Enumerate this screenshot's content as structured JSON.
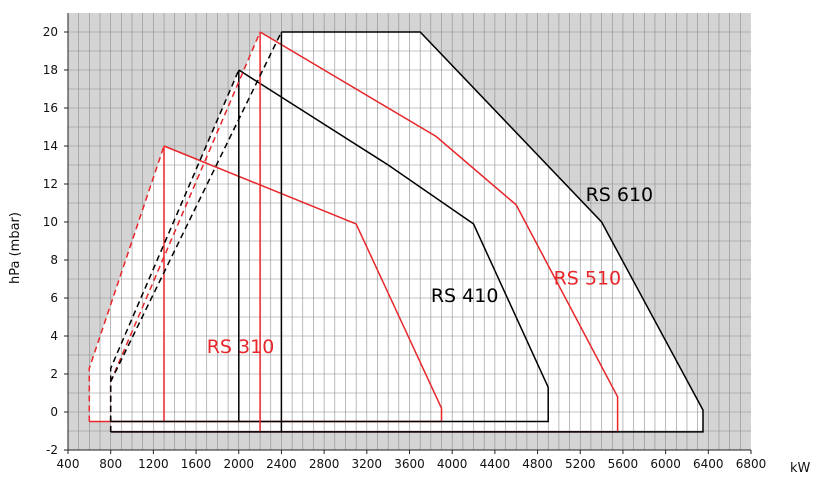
{
  "chart_data": {
    "type": "line",
    "title": "",
    "xlabel": "kW",
    "ylabel": "hPa (mbar)",
    "xlim": [
      400,
      6800
    ],
    "ylim": [
      -2,
      21
    ],
    "x_ticks": [
      400,
      800,
      1200,
      1600,
      2000,
      2400,
      2800,
      3200,
      3600,
      4000,
      4400,
      4800,
      5200,
      5600,
      6000,
      6400,
      6800
    ],
    "y_ticks": [
      -2,
      0,
      2,
      4,
      6,
      8,
      10,
      12,
      14,
      16,
      18,
      20
    ],
    "grid": true,
    "colors": {
      "background": "#d4d4d4",
      "plot_area": "#ffffff",
      "grid": "#8c8c8c",
      "red": "#e8262a",
      "black": "#000000"
    },
    "series": [
      {
        "label": "RS 310",
        "color": "#e8262a",
        "label_pos": [
          1700,
          3.1
        ],
        "solid": [
          [
            1300,
            14
          ],
          [
            3100,
            9.9
          ],
          [
            3900,
            0.2
          ],
          [
            3900,
            -0.5
          ],
          [
            600,
            -0.5
          ]
        ],
        "dashed": [
          [
            600,
            -0.5
          ],
          [
            600,
            2.3
          ],
          [
            1300,
            14
          ]
        ],
        "vertical": [
          [
            1300,
            -0.5
          ],
          [
            1300,
            14
          ]
        ]
      },
      {
        "label": "RS 410",
        "color": "#000000",
        "label_pos": [
          3800,
          5.8
        ],
        "solid": [
          [
            2000,
            18
          ],
          [
            3400,
            13
          ],
          [
            4200,
            9.9
          ],
          [
            4900,
            1.3
          ],
          [
            4900,
            -0.5
          ],
          [
            800,
            -0.5
          ]
        ],
        "dashed": [
          [
            800,
            -0.5
          ],
          [
            800,
            2.3
          ],
          [
            2000,
            18
          ]
        ],
        "vertical": [
          [
            2000,
            -0.5
          ],
          [
            2000,
            18
          ]
        ]
      },
      {
        "label": "RS 510",
        "color": "#e8262a",
        "label_pos": [
          4950,
          6.7
        ],
        "solid": [
          [
            2200,
            20
          ],
          [
            3850,
            14.5
          ],
          [
            4600,
            10.9
          ],
          [
            5550,
            0.8
          ],
          [
            5550,
            -1.05
          ],
          [
            800,
            -1.05
          ]
        ],
        "dashed": [
          [
            800,
            -1.05
          ],
          [
            800,
            1.6
          ],
          [
            2200,
            20
          ]
        ],
        "vertical": [
          [
            2200,
            -1.05
          ],
          [
            2200,
            20
          ]
        ]
      },
      {
        "label": "RS 610",
        "color": "#000000",
        "label_pos": [
          5250,
          11.1
        ],
        "solid": [
          [
            2400,
            20
          ],
          [
            3700,
            20
          ],
          [
            5400,
            10
          ],
          [
            6350,
            0.1
          ],
          [
            6350,
            -1.05
          ],
          [
            800,
            -1.05
          ]
        ],
        "dashed": [
          [
            800,
            -1.05
          ],
          [
            800,
            1.6
          ],
          [
            2400,
            20
          ]
        ],
        "vertical": [
          [
            2400,
            -1.05
          ],
          [
            2400,
            20
          ]
        ]
      }
    ]
  }
}
